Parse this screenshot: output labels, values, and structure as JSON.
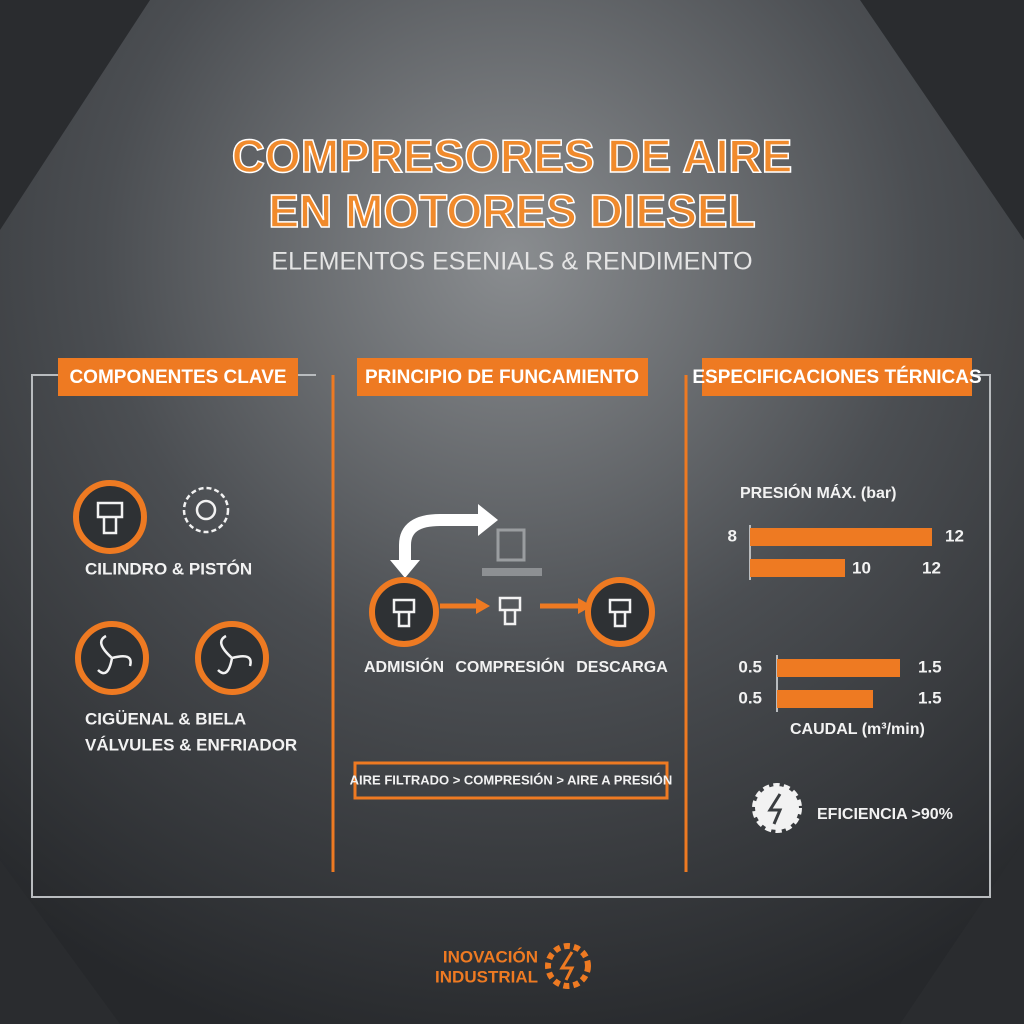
{
  "header": {
    "title_lines": [
      "COMPRESORES DE AIRE",
      "EN MOTORES DIESEL"
    ],
    "subtitle": "ELEMENTOS ESENIALS & RENDIMENTO"
  },
  "components": {
    "title": "COMPONENTES CLAVE",
    "items": [
      "CILINDRO & PISTÓN",
      "CIGÜENAL & BIELA",
      "VÁLVULES & ENFRIADOR"
    ]
  },
  "principle": {
    "title": "PRINCIPIO DE FUNCAMIENTO",
    "steps": [
      "ADMISIÓN",
      "COMPRESIÓN",
      "DESCARGA"
    ],
    "flow": "AIRE FILTRADO > COMPRESIÓN > AIRE A PRESIÓN"
  },
  "specs": {
    "title": "ESPECIFICACIONES TÉRNICAS",
    "pressure": {
      "label": "PRESIÓN MÁX. (bar)",
      "rows": [
        [
          8,
          12
        ],
        [
          10,
          12
        ]
      ]
    },
    "flow": {
      "label": "CAUDAL (m³/min)",
      "rows": [
        [
          0.5,
          1.5
        ],
        [
          0.5,
          1.5
        ]
      ]
    },
    "efficiency": "EFICIENCIA >90%"
  },
  "footer": {
    "brand_lines": [
      "INOVACIÓN",
      "INDUSTRIAL"
    ]
  }
}
